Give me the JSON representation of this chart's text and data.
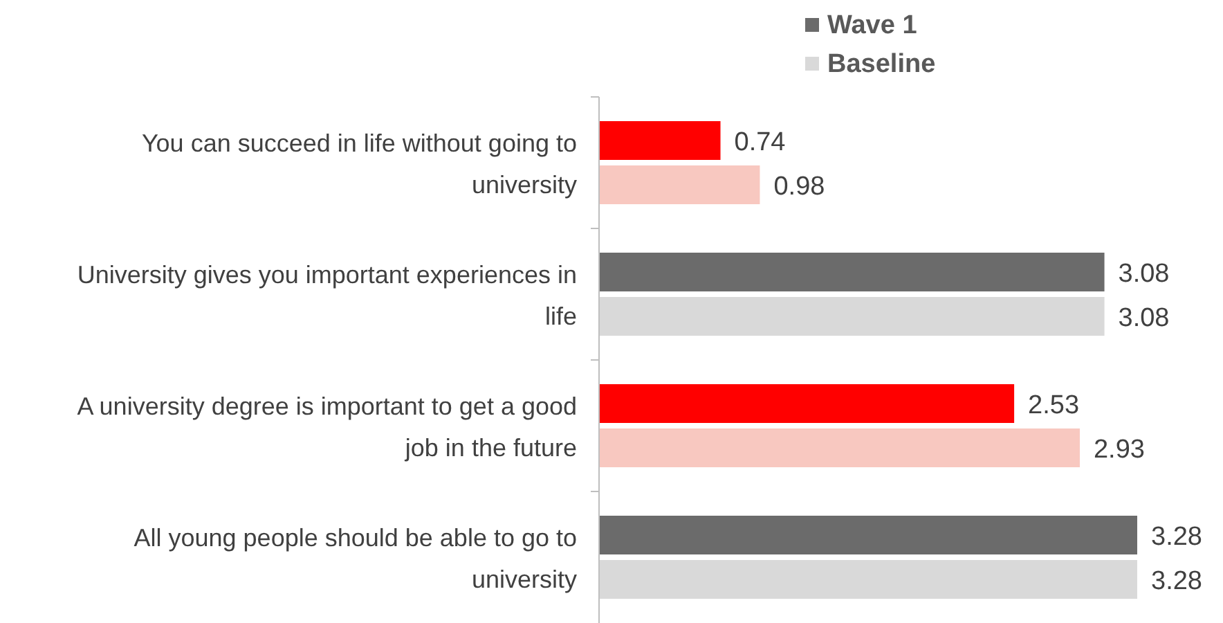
{
  "chart_data": {
    "type": "bar",
    "orientation": "horizontal",
    "categories": [
      "You can succeed in life without going to university",
      "University gives you important experiences in life",
      "A university degree is important to get a good job in the future",
      "All young people should be able to go to university"
    ],
    "series": [
      {
        "name": "Wave 1",
        "color": "#6b6b6b",
        "colors": [
          "#ff0000",
          "#6b6b6b",
          "#ff0000",
          "#6b6b6b"
        ],
        "values": [
          0.74,
          3.08,
          2.53,
          3.28
        ]
      },
      {
        "name": "Baseline",
        "color": "#d9d9d9",
        "colors": [
          "#f8c8c0",
          "#d9d9d9",
          "#f8c8c0",
          "#d9d9d9"
        ],
        "values": [
          0.98,
          3.08,
          2.93,
          3.28
        ]
      }
    ],
    "data_labels": true,
    "tick_labels": "y",
    "legend": "top"
  }
}
